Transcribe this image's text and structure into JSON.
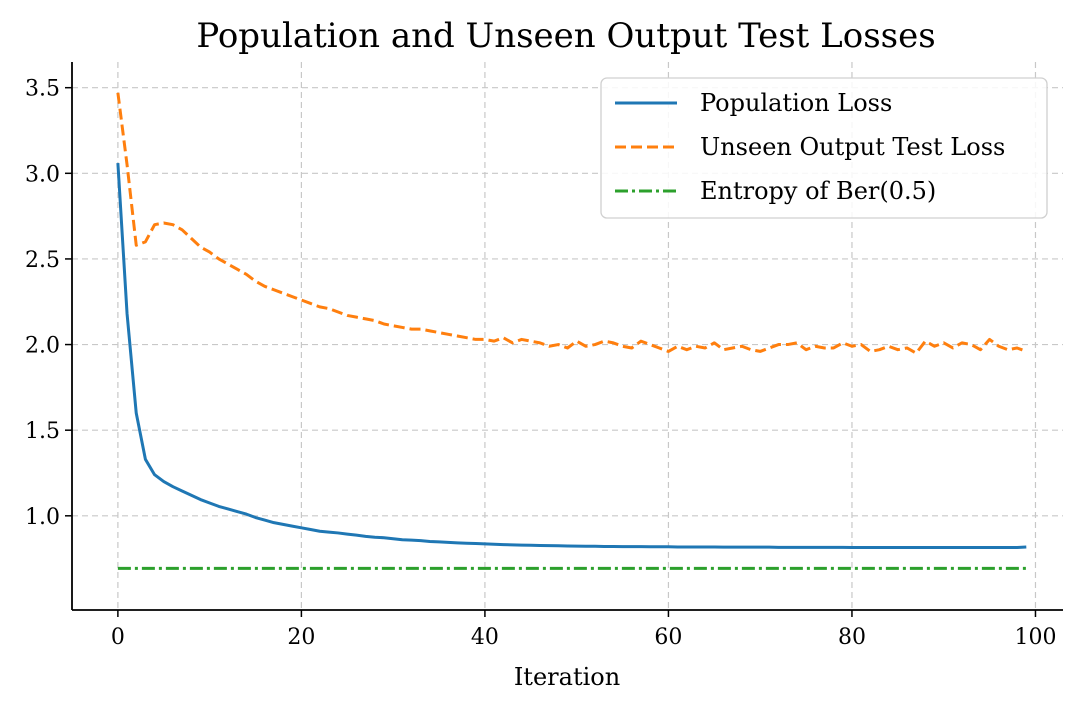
{
  "chart_data": {
    "type": "line",
    "title": "Population and Unseen Output Test Losses",
    "xlabel": "Iteration",
    "ylabel": "",
    "xlim": [
      -5,
      103
    ],
    "ylim": [
      0.45,
      3.65
    ],
    "xticks": [
      0,
      20,
      40,
      60,
      80,
      100
    ],
    "yticks": [
      1.0,
      1.5,
      2.0,
      2.5,
      3.0,
      3.5
    ],
    "xtick_labels": [
      "0",
      "20",
      "40",
      "60",
      "80",
      "100"
    ],
    "ytick_labels": [
      "1.0",
      "1.5",
      "2.0",
      "2.5",
      "3.0",
      "3.5"
    ],
    "grid": true,
    "legend_position": "top-right",
    "x": [
      0,
      1,
      2,
      3,
      4,
      5,
      6,
      7,
      8,
      9,
      10,
      11,
      12,
      13,
      14,
      15,
      16,
      17,
      18,
      19,
      20,
      21,
      22,
      23,
      24,
      25,
      26,
      27,
      28,
      29,
      30,
      31,
      32,
      33,
      34,
      35,
      36,
      37,
      38,
      39,
      40,
      41,
      42,
      43,
      44,
      45,
      46,
      47,
      48,
      49,
      50,
      51,
      52,
      53,
      54,
      55,
      56,
      57,
      58,
      59,
      60,
      61,
      62,
      63,
      64,
      65,
      66,
      67,
      68,
      69,
      70,
      71,
      72,
      73,
      74,
      75,
      76,
      77,
      78,
      79,
      80,
      81,
      82,
      83,
      84,
      85,
      86,
      87,
      88,
      89,
      90,
      91,
      92,
      93,
      94,
      95,
      96,
      97,
      98,
      99
    ],
    "series": [
      {
        "name": "Population Loss",
        "color": "#1f77b4",
        "style": "solid",
        "values": [
          3.06,
          2.18,
          1.6,
          1.33,
          1.24,
          1.2,
          1.17,
          1.145,
          1.12,
          1.095,
          1.075,
          1.055,
          1.04,
          1.025,
          1.01,
          0.99,
          0.975,
          0.96,
          0.95,
          0.94,
          0.93,
          0.92,
          0.91,
          0.905,
          0.9,
          0.893,
          0.887,
          0.88,
          0.875,
          0.872,
          0.866,
          0.86,
          0.858,
          0.855,
          0.85,
          0.848,
          0.845,
          0.842,
          0.84,
          0.838,
          0.836,
          0.834,
          0.832,
          0.83,
          0.829,
          0.828,
          0.827,
          0.826,
          0.825,
          0.824,
          0.823,
          0.822,
          0.822,
          0.821,
          0.821,
          0.82,
          0.82,
          0.82,
          0.819,
          0.819,
          0.819,
          0.818,
          0.818,
          0.818,
          0.818,
          0.818,
          0.817,
          0.817,
          0.817,
          0.817,
          0.817,
          0.817,
          0.816,
          0.816,
          0.816,
          0.816,
          0.816,
          0.816,
          0.816,
          0.816,
          0.815,
          0.815,
          0.815,
          0.815,
          0.815,
          0.815,
          0.815,
          0.815,
          0.815,
          0.815,
          0.815,
          0.815,
          0.815,
          0.815,
          0.815,
          0.815,
          0.815,
          0.815,
          0.815,
          0.818
        ]
      },
      {
        "name": "Unseen Output Test Loss",
        "color": "#ff7f0e",
        "style": "dashed",
        "values": [
          3.47,
          3.05,
          2.58,
          2.6,
          2.7,
          2.71,
          2.7,
          2.67,
          2.62,
          2.57,
          2.54,
          2.5,
          2.47,
          2.44,
          2.41,
          2.37,
          2.34,
          2.32,
          2.3,
          2.28,
          2.26,
          2.24,
          2.22,
          2.21,
          2.19,
          2.17,
          2.16,
          2.15,
          2.14,
          2.12,
          2.11,
          2.1,
          2.09,
          2.09,
          2.08,
          2.07,
          2.06,
          2.05,
          2.04,
          2.03,
          2.03,
          2.02,
          2.04,
          2.01,
          2.03,
          2.02,
          2.01,
          1.99,
          2.0,
          1.98,
          2.02,
          1.99,
          2.0,
          2.02,
          2.01,
          1.99,
          1.98,
          2.02,
          2.0,
          1.98,
          1.96,
          1.99,
          1.97,
          1.99,
          1.98,
          2.01,
          1.97,
          1.98,
          1.99,
          1.97,
          1.96,
          1.98,
          2.0,
          2.0,
          2.01,
          1.97,
          1.99,
          1.98,
          1.98,
          2.01,
          1.99,
          2.0,
          1.96,
          1.97,
          1.99,
          1.97,
          1.98,
          1.95,
          2.02,
          1.99,
          2.01,
          1.98,
          2.01,
          2.0,
          1.97,
          2.03,
          1.99,
          1.97,
          1.98,
          1.96
        ]
      },
      {
        "name": "Entropy of Ber(0.5)",
        "color": "#2ca02c",
        "style": "dashdot",
        "values": [
          0.693,
          0.693,
          0.693,
          0.693,
          0.693,
          0.693,
          0.693,
          0.693,
          0.693,
          0.693,
          0.693,
          0.693,
          0.693,
          0.693,
          0.693,
          0.693,
          0.693,
          0.693,
          0.693,
          0.693,
          0.693,
          0.693,
          0.693,
          0.693,
          0.693,
          0.693,
          0.693,
          0.693,
          0.693,
          0.693,
          0.693,
          0.693,
          0.693,
          0.693,
          0.693,
          0.693,
          0.693,
          0.693,
          0.693,
          0.693,
          0.693,
          0.693,
          0.693,
          0.693,
          0.693,
          0.693,
          0.693,
          0.693,
          0.693,
          0.693,
          0.693,
          0.693,
          0.693,
          0.693,
          0.693,
          0.693,
          0.693,
          0.693,
          0.693,
          0.693,
          0.693,
          0.693,
          0.693,
          0.693,
          0.693,
          0.693,
          0.693,
          0.693,
          0.693,
          0.693,
          0.693,
          0.693,
          0.693,
          0.693,
          0.693,
          0.693,
          0.693,
          0.693,
          0.693,
          0.693,
          0.693,
          0.693,
          0.693,
          0.693,
          0.693,
          0.693,
          0.693,
          0.693,
          0.693,
          0.693,
          0.693,
          0.693,
          0.693,
          0.693,
          0.693,
          0.693,
          0.693,
          0.693,
          0.693,
          0.693
        ]
      }
    ]
  }
}
